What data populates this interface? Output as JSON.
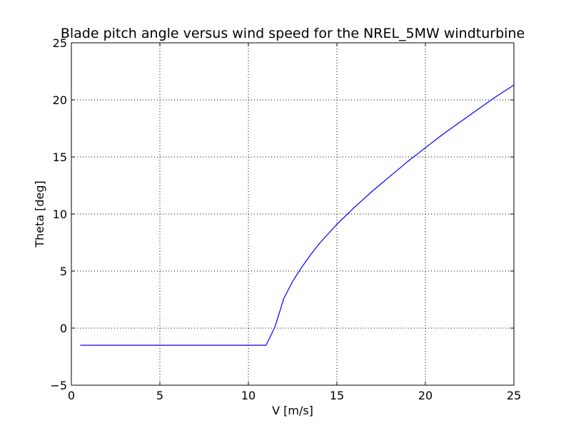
{
  "chart_data": {
    "type": "line",
    "title": "Blade pitch angle versus wind speed for the NREL_5MW windturbine",
    "xlabel": "V [m/s]",
    "ylabel": "Theta [deg]",
    "xlim": [
      0,
      25
    ],
    "ylim": [
      -5,
      25
    ],
    "xticks": [
      0,
      5,
      10,
      15,
      20,
      25
    ],
    "yticks": [
      -5,
      0,
      5,
      10,
      15,
      20,
      25
    ],
    "xtick_labels": [
      "0",
      "5",
      "10",
      "15",
      "20",
      "25"
    ],
    "ytick_labels": [
      "−5",
      "0",
      "5",
      "10",
      "15",
      "20",
      "25"
    ],
    "grid": true,
    "series": [
      {
        "color": "#0000ff",
        "x": [
          0.5,
          11.0,
          11.5,
          12.0,
          12.5,
          13.0,
          13.5,
          14.0,
          15.0,
          16.0,
          17.0,
          18.0,
          19.0,
          20.0,
          21.0,
          22.0,
          23.0,
          24.0,
          25.0
        ],
        "y": [
          -1.5,
          -1.5,
          0.1,
          2.6,
          4.1,
          5.3,
          6.4,
          7.4,
          9.1,
          10.6,
          12.0,
          13.3,
          14.6,
          15.8,
          17.0,
          18.1,
          19.2,
          20.3,
          21.3
        ]
      }
    ]
  }
}
